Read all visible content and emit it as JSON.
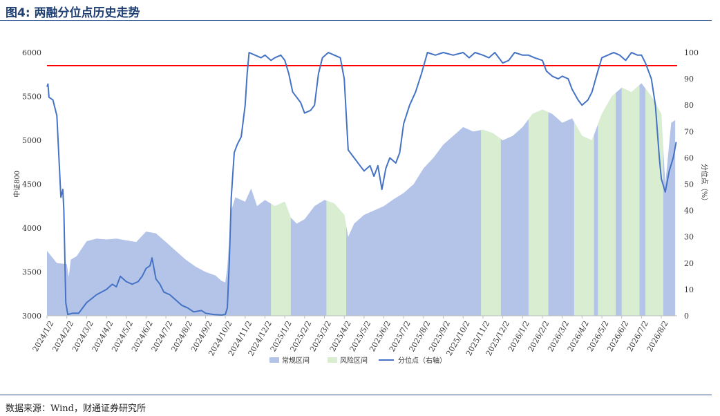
{
  "header": {
    "title": "图4: 两融分位点历史走势"
  },
  "footer": {
    "source": "数据来源：Wind，财通证券研究所"
  },
  "colors": {
    "normal_area": "#b4c4e8",
    "risk_area": "#d9eed1",
    "percentile_line": "#4472c4",
    "threshold_line": "#ff0000"
  },
  "chart_data": {
    "type": "area",
    "title": "",
    "ylabel_left": "中证800",
    "ylabel_right": "分位点（%）",
    "ylim_left": [
      3000,
      6000
    ],
    "ylim_right": [
      0,
      100
    ],
    "yticks_left": [
      "3000",
      "3500",
      "4000",
      "4500",
      "5000",
      "5500",
      "6000"
    ],
    "yticks_right": [
      "0",
      "10",
      "20",
      "30",
      "40",
      "50",
      "60",
      "70",
      "80",
      "90",
      "100"
    ],
    "x_labels": [
      "2024/1/2",
      "2024/2/2",
      "2024/3/2",
      "2024/4/2",
      "2024/5/2",
      "2024/6/2",
      "2024/7/2",
      "2024/8/2",
      "2024/9/2",
      "2024/10/2",
      "2024/11/2",
      "2024/12/2",
      "2025/1/2",
      "2025/2/2",
      "2025/3/2",
      "2025/4/2",
      "2025/5/2",
      "2025/6/2",
      "2025/7/2",
      "2025/8/2",
      "2025/9/2",
      "2025/10/2",
      "2025/11/2",
      "2025/12/2",
      "2026/1/2",
      "2026/2/2",
      "2026/3/2",
      "2026/4/2",
      "2026/5/2",
      "2026/6/2",
      "2026/7/2",
      "2026/8/2"
    ],
    "threshold": 95,
    "legend": [
      "常规区间",
      "风险区间",
      "分位点（右轴）"
    ],
    "legend_position": "bottom",
    "series": [
      {
        "name": "中证800",
        "axis": "left",
        "points": [
          [
            0,
            3740
          ],
          [
            0.5,
            3600
          ],
          [
            1.0,
            3590
          ],
          [
            1.1,
            3440
          ],
          [
            1.2,
            3640
          ],
          [
            1.5,
            3680
          ],
          [
            2.0,
            3850
          ],
          [
            2.5,
            3880
          ],
          [
            3.0,
            3870
          ],
          [
            3.5,
            3880
          ],
          [
            4.0,
            3860
          ],
          [
            4.5,
            3840
          ],
          [
            5.0,
            3960
          ],
          [
            5.5,
            3940
          ],
          [
            6.0,
            3840
          ],
          [
            6.5,
            3740
          ],
          [
            7.0,
            3640
          ],
          [
            7.5,
            3560
          ],
          [
            8.0,
            3500
          ],
          [
            8.5,
            3460
          ],
          [
            8.8,
            3400
          ],
          [
            9.0,
            3380
          ],
          [
            9.1,
            3560
          ],
          [
            9.3,
            4200
          ],
          [
            9.5,
            4350
          ],
          [
            10.0,
            4300
          ],
          [
            10.3,
            4450
          ],
          [
            10.6,
            4250
          ],
          [
            11.0,
            4320
          ],
          [
            11.5,
            4250
          ],
          [
            12.0,
            4300
          ],
          [
            12.3,
            4120
          ],
          [
            12.6,
            4050
          ],
          [
            13.0,
            4100
          ],
          [
            13.5,
            4250
          ],
          [
            14.0,
            4320
          ],
          [
            14.5,
            4280
          ],
          [
            15.0,
            4150
          ],
          [
            15.2,
            3900
          ],
          [
            15.5,
            4050
          ],
          [
            16.0,
            4150
          ],
          [
            16.5,
            4200
          ],
          [
            17.0,
            4250
          ],
          [
            17.5,
            4330
          ],
          [
            18.0,
            4400
          ],
          [
            18.5,
            4500
          ],
          [
            19.0,
            4680
          ],
          [
            19.5,
            4800
          ],
          [
            20.0,
            4950
          ],
          [
            20.5,
            5050
          ],
          [
            21.0,
            5150
          ],
          [
            21.5,
            5100
          ],
          [
            22.0,
            5120
          ],
          [
            22.5,
            5080
          ],
          [
            23.0,
            5000
          ],
          [
            23.5,
            5050
          ],
          [
            24.0,
            5150
          ],
          [
            24.5,
            5300
          ],
          [
            25.0,
            5350
          ],
          [
            25.5,
            5300
          ],
          [
            26.0,
            5200
          ],
          [
            26.5,
            5250
          ],
          [
            27.0,
            5050
          ],
          [
            27.5,
            5000
          ],
          [
            28.0,
            5300
          ],
          [
            28.5,
            5500
          ],
          [
            29.0,
            5600
          ],
          [
            29.5,
            5550
          ],
          [
            30.0,
            5650
          ],
          [
            30.5,
            5500
          ],
          [
            31.0,
            5300
          ],
          [
            31.2,
            4500
          ],
          [
            31.5,
            5200
          ],
          [
            31.7,
            5230
          ]
        ]
      },
      {
        "name": "分位点（右轴）",
        "axis": "right",
        "points": [
          [
            0,
            87
          ],
          [
            0.05,
            88
          ],
          [
            0.1,
            83
          ],
          [
            0.3,
            82
          ],
          [
            0.5,
            76
          ],
          [
            0.7,
            45
          ],
          [
            0.8,
            48
          ],
          [
            0.85,
            40
          ],
          [
            0.95,
            5
          ],
          [
            1.05,
            0.5
          ],
          [
            1.3,
            1
          ],
          [
            1.6,
            1
          ],
          [
            1.8,
            3
          ],
          [
            2.0,
            5
          ],
          [
            2.5,
            8
          ],
          [
            3.0,
            10
          ],
          [
            3.3,
            12
          ],
          [
            3.5,
            11
          ],
          [
            3.7,
            15
          ],
          [
            4.0,
            13
          ],
          [
            4.3,
            12
          ],
          [
            4.6,
            13
          ],
          [
            4.8,
            15
          ],
          [
            5.0,
            18
          ],
          [
            5.2,
            19
          ],
          [
            5.3,
            22
          ],
          [
            5.5,
            14
          ],
          [
            5.7,
            12
          ],
          [
            5.9,
            9
          ],
          [
            6.2,
            8
          ],
          [
            6.5,
            6
          ],
          [
            6.8,
            4
          ],
          [
            7.1,
            3
          ],
          [
            7.4,
            1.5
          ],
          [
            7.8,
            2
          ],
          [
            8.0,
            1
          ],
          [
            8.4,
            0.5
          ],
          [
            8.8,
            0.3
          ],
          [
            9.0,
            0.5
          ],
          [
            9.1,
            3
          ],
          [
            9.2,
            20
          ],
          [
            9.3,
            45
          ],
          [
            9.45,
            62
          ],
          [
            9.6,
            65
          ],
          [
            9.8,
            68
          ],
          [
            10.0,
            80
          ],
          [
            10.1,
            92
          ],
          [
            10.2,
            100
          ],
          [
            10.5,
            99
          ],
          [
            10.8,
            98
          ],
          [
            11.0,
            99
          ],
          [
            11.3,
            97
          ],
          [
            11.5,
            98
          ],
          [
            11.8,
            99
          ],
          [
            12.0,
            97
          ],
          [
            12.2,
            92
          ],
          [
            12.4,
            85
          ],
          [
            12.6,
            83
          ],
          [
            12.8,
            81
          ],
          [
            13.0,
            77
          ],
          [
            13.3,
            78
          ],
          [
            13.5,
            80
          ],
          [
            13.7,
            92
          ],
          [
            13.9,
            98
          ],
          [
            14.2,
            100
          ],
          [
            14.5,
            99
          ],
          [
            14.8,
            98
          ],
          [
            15.0,
            90
          ],
          [
            15.2,
            63
          ],
          [
            15.5,
            60
          ],
          [
            15.8,
            57
          ],
          [
            16.0,
            55
          ],
          [
            16.3,
            57
          ],
          [
            16.5,
            53
          ],
          [
            16.7,
            57
          ],
          [
            16.9,
            48
          ],
          [
            17.1,
            56
          ],
          [
            17.3,
            60
          ],
          [
            17.6,
            58
          ],
          [
            17.8,
            62
          ],
          [
            18.0,
            73
          ],
          [
            18.3,
            80
          ],
          [
            18.6,
            85
          ],
          [
            18.9,
            92
          ],
          [
            19.2,
            100
          ],
          [
            19.6,
            99
          ],
          [
            20.0,
            100
          ],
          [
            20.5,
            99
          ],
          [
            21.0,
            100
          ],
          [
            21.3,
            98
          ],
          [
            21.6,
            100
          ],
          [
            22.0,
            99
          ],
          [
            22.3,
            98
          ],
          [
            22.6,
            100
          ],
          [
            23.0,
            96
          ],
          [
            23.3,
            97
          ],
          [
            23.6,
            100
          ],
          [
            24.0,
            99
          ],
          [
            24.3,
            99
          ],
          [
            24.6,
            98
          ],
          [
            25.0,
            97
          ],
          [
            25.2,
            93
          ],
          [
            25.5,
            91
          ],
          [
            25.8,
            90
          ],
          [
            26.0,
            91
          ],
          [
            26.3,
            90
          ],
          [
            26.5,
            86
          ],
          [
            26.8,
            82
          ],
          [
            27.0,
            80
          ],
          [
            27.3,
            82
          ],
          [
            27.5,
            85
          ],
          [
            27.8,
            93
          ],
          [
            28.0,
            98
          ],
          [
            28.3,
            99
          ],
          [
            28.6,
            100
          ],
          [
            28.9,
            99
          ],
          [
            29.2,
            97
          ],
          [
            29.5,
            100
          ],
          [
            29.8,
            99
          ],
          [
            30.0,
            99
          ],
          [
            30.2,
            96
          ],
          [
            30.5,
            90
          ],
          [
            30.7,
            80
          ],
          [
            30.9,
            60
          ],
          [
            31.0,
            52
          ],
          [
            31.2,
            47
          ],
          [
            31.4,
            55
          ],
          [
            31.6,
            60
          ],
          [
            31.75,
            66
          ]
        ]
      }
    ],
    "risk_intervals": [
      [
        11.3,
        12.3
      ],
      [
        14.1,
        15.1
      ],
      [
        21.9,
        22.9
      ],
      [
        24.3,
        25.3
      ],
      [
        26.6,
        27.6
      ],
      [
        27.8,
        28.7
      ],
      [
        29.0,
        29.9
      ],
      [
        30.2,
        31.1
      ]
    ]
  }
}
